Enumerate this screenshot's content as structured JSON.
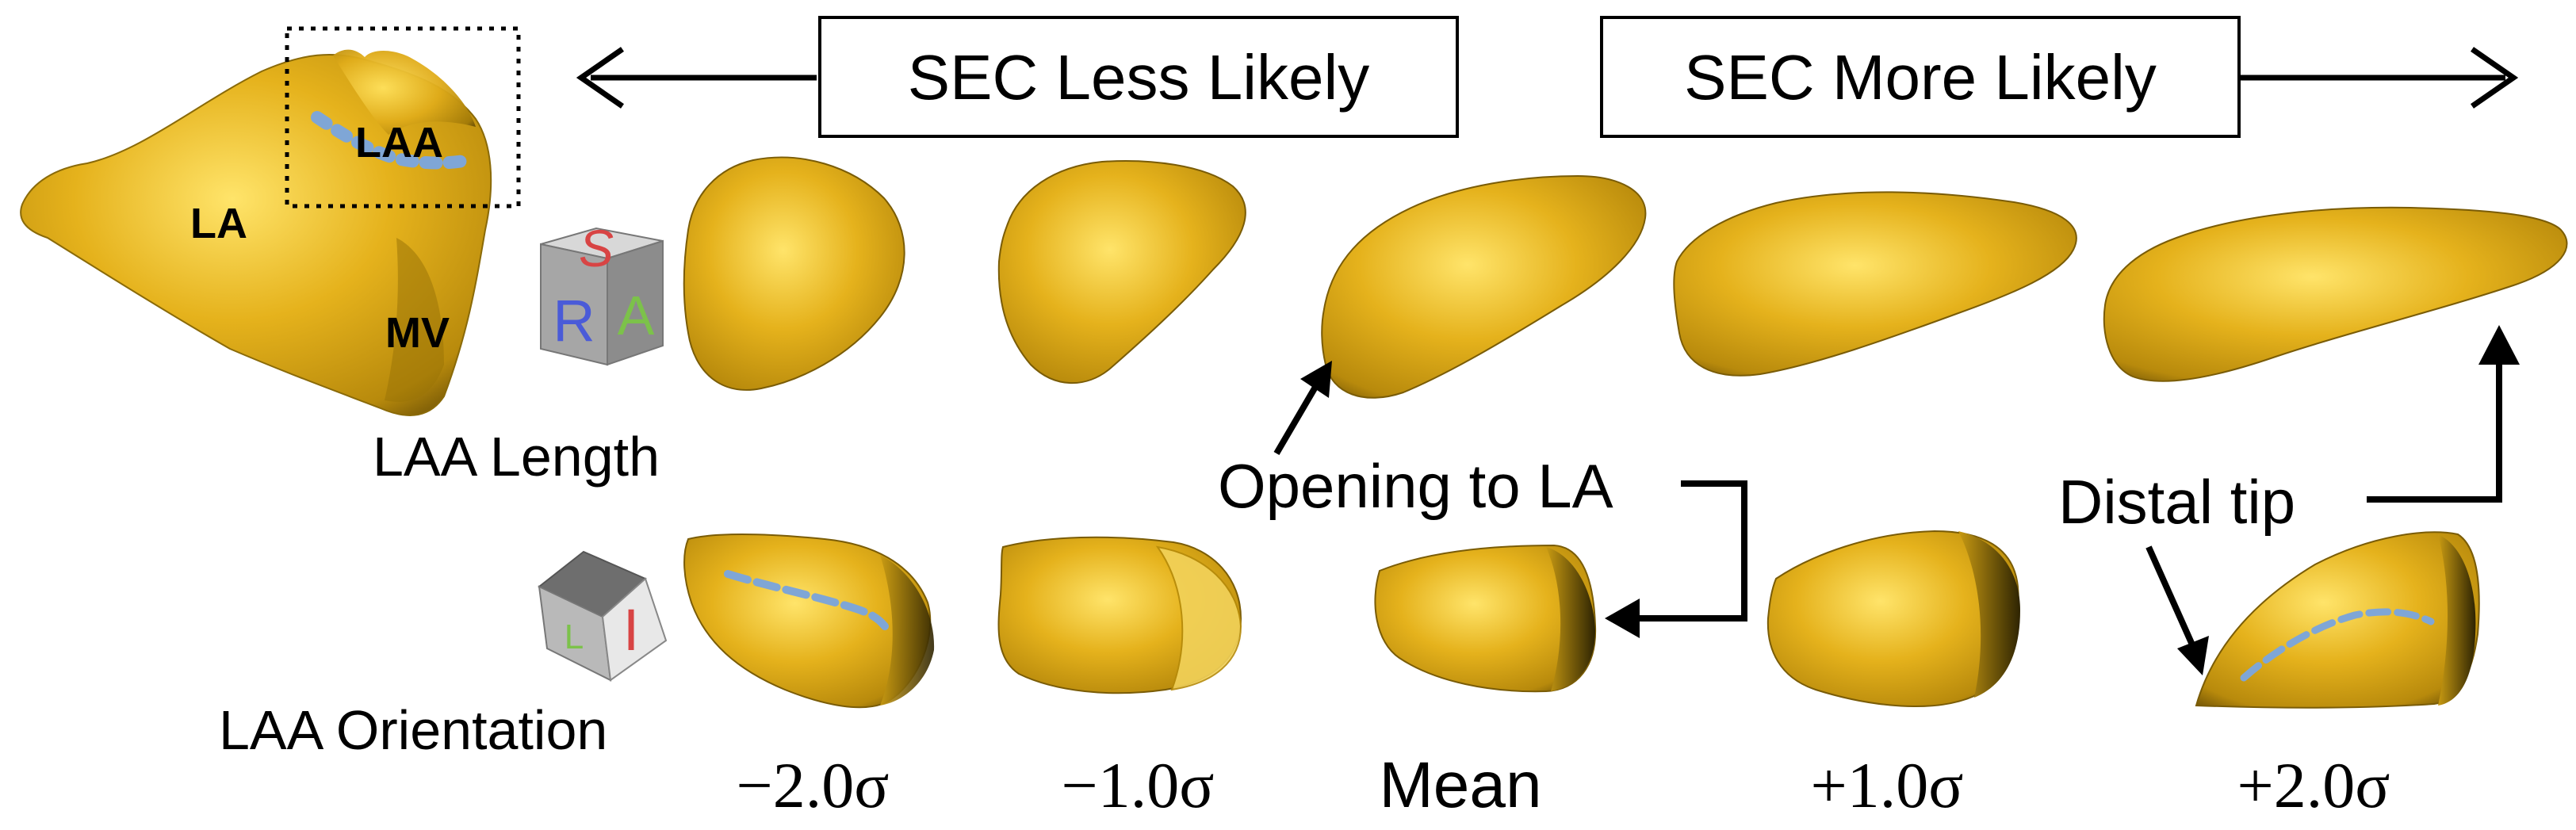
{
  "figure": {
    "header": {
      "less_likely": "SEC Less Likely",
      "more_likely": "SEC More Likely"
    },
    "heart_labels": {
      "la": "LA",
      "laa": "LAA",
      "mv": "MV"
    },
    "orientation_cube_top": {
      "top": "S",
      "left": "R",
      "right": "A"
    },
    "orientation_cube_bottom": {
      "left": "L",
      "right": "I"
    },
    "row_labels": {
      "length": "LAA Length",
      "orientation": "LAA Orientation"
    },
    "annotations": {
      "opening": "Opening to LA",
      "distal_tip": "Distal tip"
    },
    "sigma_labels": [
      "−2.0σ",
      "−1.0σ",
      "Mean",
      "+1.0σ",
      "+2.0σ"
    ],
    "colors": {
      "surface": "#E5B21C",
      "surface_highlight": "#FFE46A",
      "surface_shadow": "#6E5206",
      "centerline": "#7FA6D6",
      "cube_gray": "#9A9A9A",
      "cube_s": "#D84444",
      "cube_r": "#4A5BD8",
      "cube_a": "#7CC24A"
    }
  }
}
